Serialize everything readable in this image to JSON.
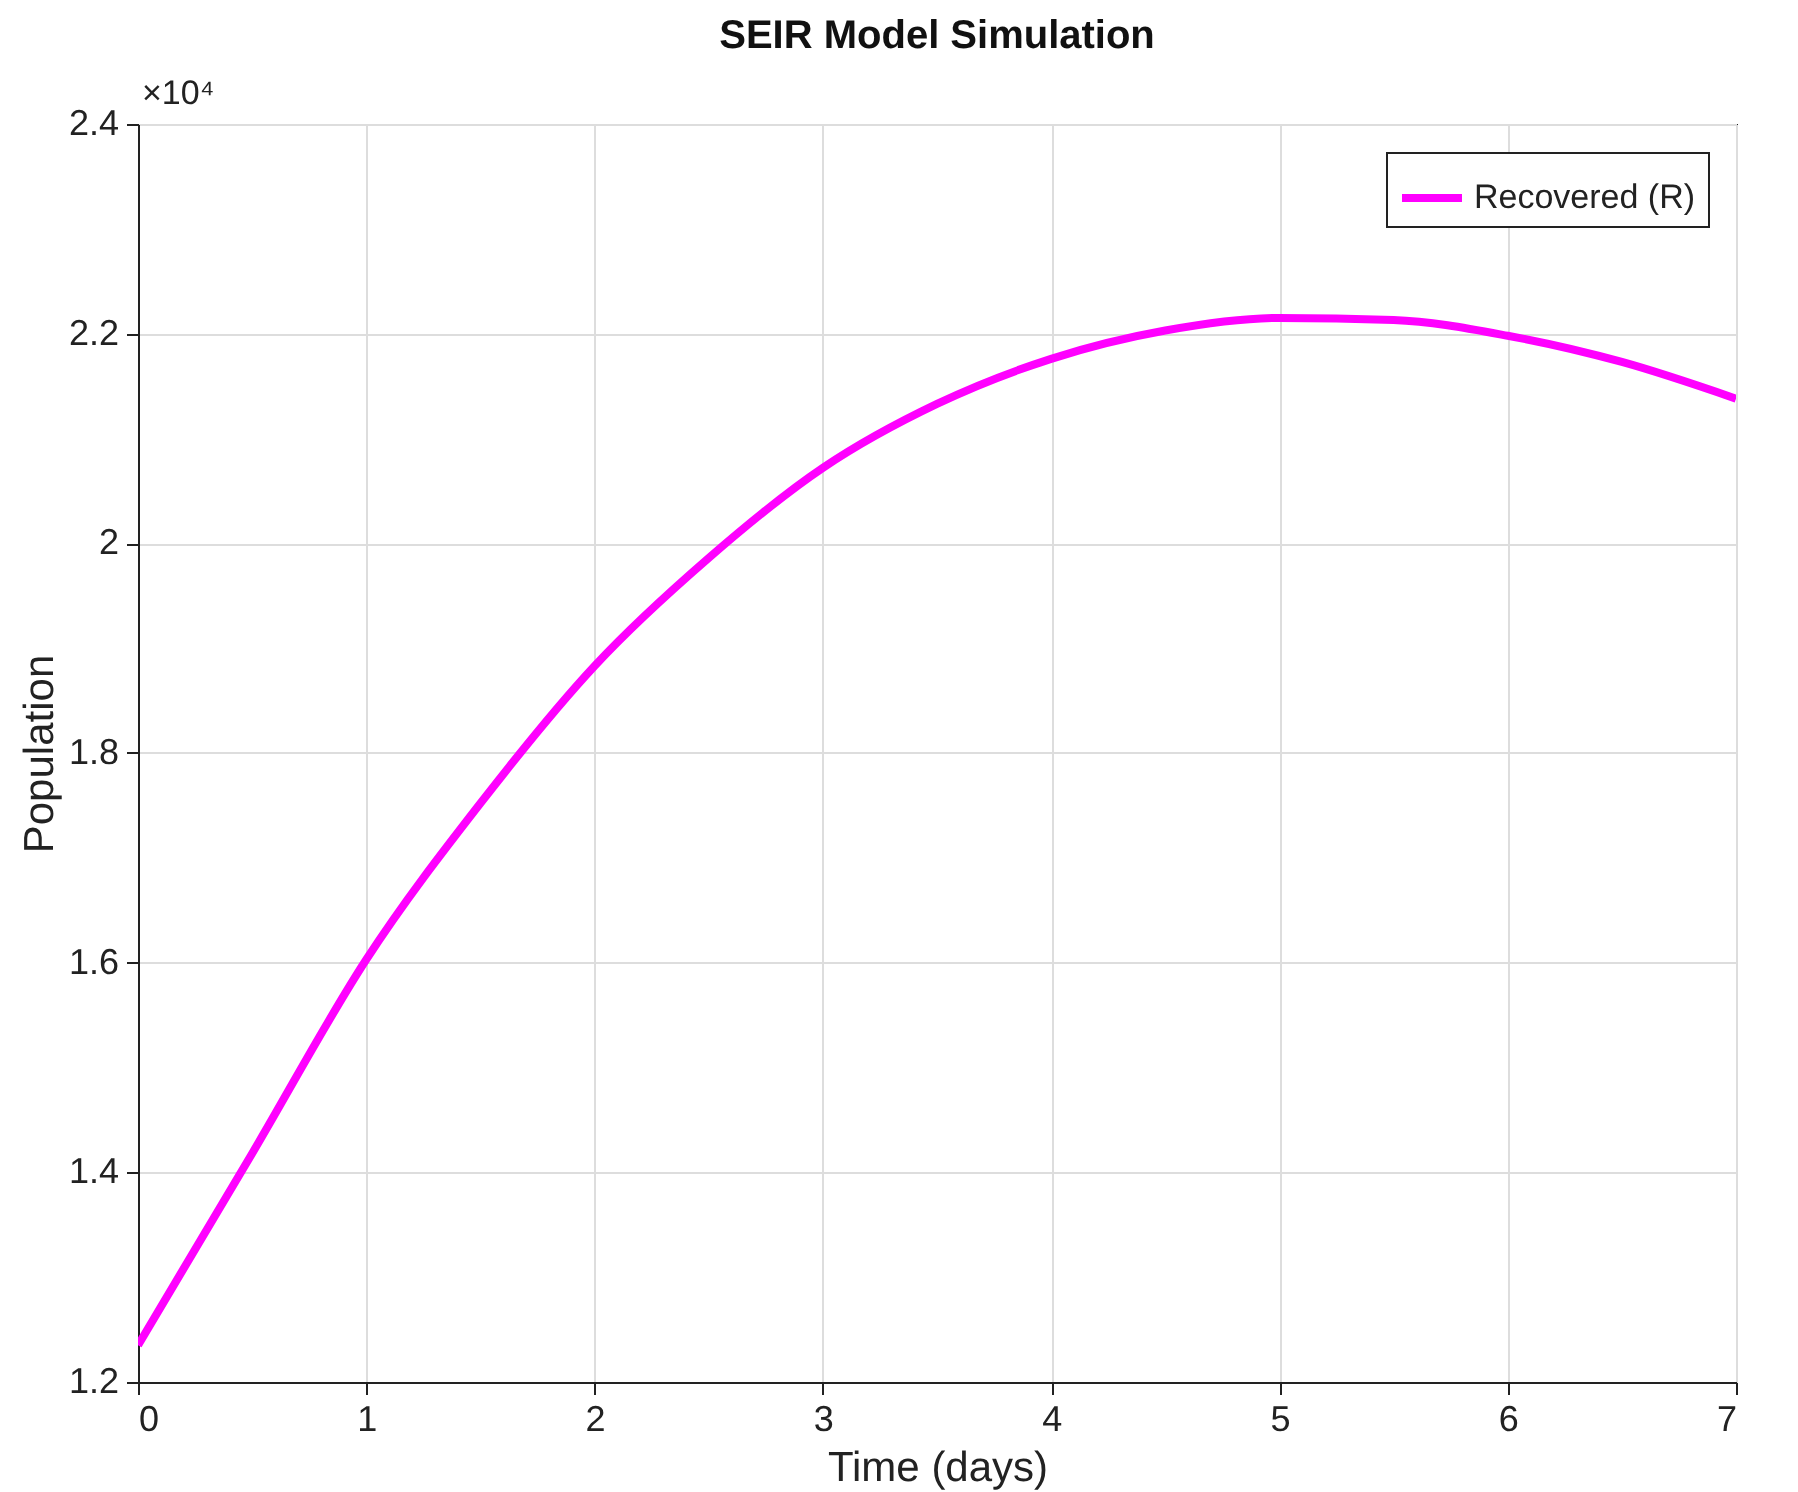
{
  "chart_data": {
    "type": "line",
    "title": "SEIR Model Simulation",
    "xlabel": "Time (days)",
    "ylabel": "Population",
    "annotations": [
      "×10⁴"
    ],
    "x": [
      0,
      0.5,
      1,
      1.5,
      2,
      2.5,
      3,
      3.5,
      4,
      4.5,
      5,
      5.5,
      6,
      6.5,
      7
    ],
    "series": [
      {
        "name": "Recovered (R)",
        "color": "#ff00ff",
        "values": [
          1.235,
          1.418,
          1.603,
          1.752,
          1.883,
          1.986,
          2.072,
          2.133,
          2.176,
          2.203,
          2.215,
          2.213,
          2.198,
          2.173,
          2.138
        ]
      }
    ],
    "xlim": [
      0,
      7
    ],
    "xticks": [
      0,
      1,
      2,
      3,
      4,
      5,
      6,
      7
    ],
    "ylim": [
      1.2,
      2.4
    ],
    "yticks": [
      1.2,
      1.4,
      1.6,
      1.8,
      2,
      2.2,
      2.4
    ],
    "grid": true,
    "legend": "top right",
    "marker": "none",
    "line_style": "solid"
  }
}
